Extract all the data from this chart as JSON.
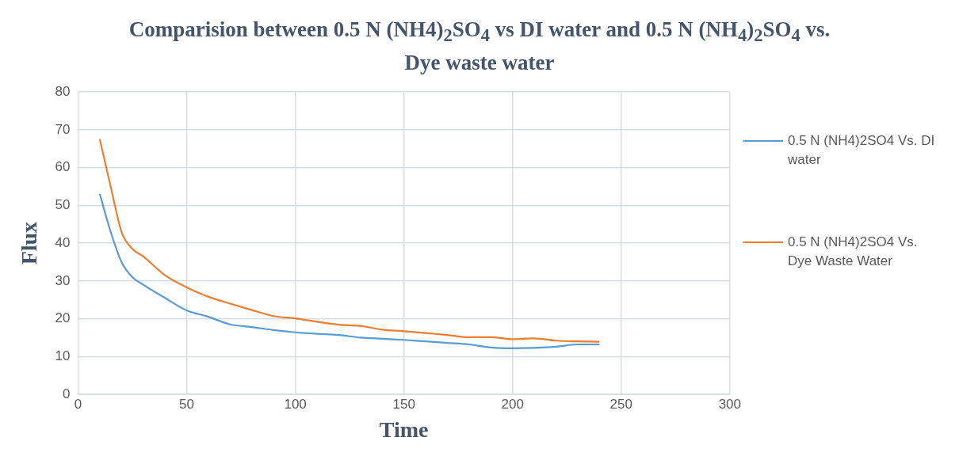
{
  "chart_data": {
    "type": "line",
    "title": "Comparision between 0.5 N (NH4)$_{2}$SO$_{4}$ vs DI water and 0.5 N (NH$_{4}$)$_{2}$SO$_{4}$ vs. Dye waste water",
    "xlabel": "Time",
    "ylabel": "Flux",
    "x": [
      10,
      15,
      20,
      25,
      30,
      40,
      50,
      60,
      70,
      80,
      90,
      100,
      110,
      120,
      130,
      140,
      150,
      160,
      170,
      180,
      190,
      200,
      210,
      220,
      230,
      240
    ],
    "series": [
      {
        "name": "0.5 N (NH4)2SO4 Vs. DI water",
        "color": "#5b9bd5",
        "values": [
          53,
          43,
          35,
          31,
          29,
          25.5,
          22.2,
          20.5,
          18.5,
          17.8,
          17,
          16.4,
          16,
          15.7,
          15,
          14.7,
          14.4,
          14,
          13.6,
          13.2,
          12.4,
          12.2,
          12.3,
          12.6,
          13.2,
          13.2
        ]
      },
      {
        "name": "0.5 N (NH4)2SO4 Vs. Dye Waste Water",
        "color": "#ed7d31",
        "values": [
          67.5,
          55,
          43,
          38.5,
          36.5,
          31.5,
          28.3,
          25.8,
          24,
          22.3,
          20.7,
          20.1,
          19.2,
          18.4,
          18.1,
          17.1,
          16.7,
          16.2,
          15.7,
          15.1,
          15.1,
          14.6,
          14.8,
          14.2,
          14,
          13.9
        ]
      }
    ],
    "xlim": [
      0,
      300
    ],
    "xticks": [
      0,
      50,
      100,
      150,
      200,
      250,
      300
    ],
    "ylim": [
      0,
      80
    ],
    "yticks": [
      0,
      10,
      20,
      30,
      40,
      50,
      60,
      70,
      80
    ],
    "grid": true,
    "legend": "right",
    "marker": "none",
    "line_style": "solid"
  }
}
